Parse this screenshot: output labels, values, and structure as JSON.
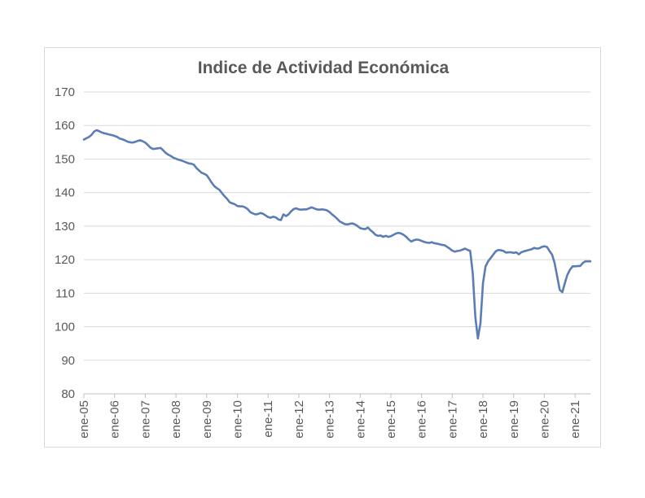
{
  "chart_data": {
    "type": "line",
    "title": "Indice de Actividad Económica",
    "xlabel": "",
    "ylabel": "",
    "ylim": [
      80,
      170
    ],
    "y_ticks": [
      "170",
      "160",
      "150",
      "140",
      "130",
      "120",
      "110",
      "100",
      "90",
      "80"
    ],
    "x_tick_labels": [
      "ene-05",
      "ene-06",
      "ene-07",
      "ene-08",
      "ene-09",
      "ene-10",
      "ene-11",
      "ene-12",
      "ene-13",
      "ene-14",
      "ene-15",
      "ene-16",
      "ene-17",
      "ene-18",
      "ene-19",
      "ene-20",
      "ene-21"
    ],
    "grid": true,
    "legend": "none",
    "line_color": "#5B7DB5",
    "grid_color": "#d9d9d9",
    "series": [
      {
        "x_start": "ene-05",
        "frequency": "monthly",
        "values": [
          155.8,
          156.2,
          156.6,
          157.2,
          158.2,
          158.6,
          158.3,
          157.9,
          157.7,
          157.5,
          157.3,
          157.1,
          156.9,
          156.6,
          156.1,
          155.9,
          155.6,
          155.2,
          155.0,
          154.9,
          155.1,
          155.4,
          155.6,
          155.3,
          154.9,
          154.2,
          153.4,
          153.0,
          153.1,
          153.2,
          153.3,
          152.6,
          151.8,
          151.3,
          150.9,
          150.4,
          150.1,
          149.8,
          149.6,
          149.3,
          149.0,
          148.7,
          148.6,
          148.3,
          147.3,
          146.6,
          145.9,
          145.6,
          145.2,
          144.1,
          142.9,
          141.9,
          141.3,
          140.8,
          139.8,
          138.9,
          138.1,
          137.1,
          136.8,
          136.5,
          136.0,
          135.9,
          135.9,
          135.6,
          135.1,
          134.2,
          133.8,
          133.5,
          133.6,
          133.9,
          133.7,
          133.2,
          132.7,
          132.5,
          132.8,
          132.6,
          132.0,
          131.8,
          133.5,
          133.0,
          133.5,
          134.4,
          135.1,
          135.3,
          135.0,
          134.9,
          135.0,
          135.0,
          135.3,
          135.6,
          135.3,
          135.0,
          134.9,
          135.0,
          134.9,
          134.7,
          134.2,
          133.5,
          132.9,
          132.2,
          131.4,
          131.0,
          130.6,
          130.5,
          130.7,
          130.8,
          130.5,
          130.0,
          129.4,
          129.2,
          129.1,
          129.6,
          128.8,
          128.2,
          127.4,
          127.1,
          127.2,
          126.8,
          127.1,
          126.8,
          127.0,
          127.4,
          127.8,
          128.0,
          127.8,
          127.4,
          126.8,
          126.0,
          125.4,
          125.8,
          126.0,
          125.9,
          125.6,
          125.3,
          125.1,
          125.0,
          125.2,
          124.9,
          124.8,
          124.6,
          124.4,
          124.3,
          123.8,
          123.3,
          122.7,
          122.4,
          122.6,
          122.7,
          123.0,
          123.3,
          122.9,
          122.6,
          116.0,
          103.0,
          96.5,
          101.0,
          113.0,
          118.0,
          119.5,
          120.5,
          121.5,
          122.5,
          122.9,
          122.8,
          122.6,
          122.1,
          122.2,
          122.2,
          122.0,
          122.2,
          121.6,
          122.2,
          122.5,
          122.7,
          122.9,
          123.1,
          123.5,
          123.3,
          123.4,
          123.8,
          124.0,
          123.8,
          122.6,
          121.5,
          119.0,
          115.0,
          111.0,
          110.3,
          113.0,
          115.5,
          117.0,
          118.0,
          118.0,
          118.1,
          118.1,
          119.0,
          119.5,
          119.5,
          119.5
        ]
      }
    ]
  }
}
